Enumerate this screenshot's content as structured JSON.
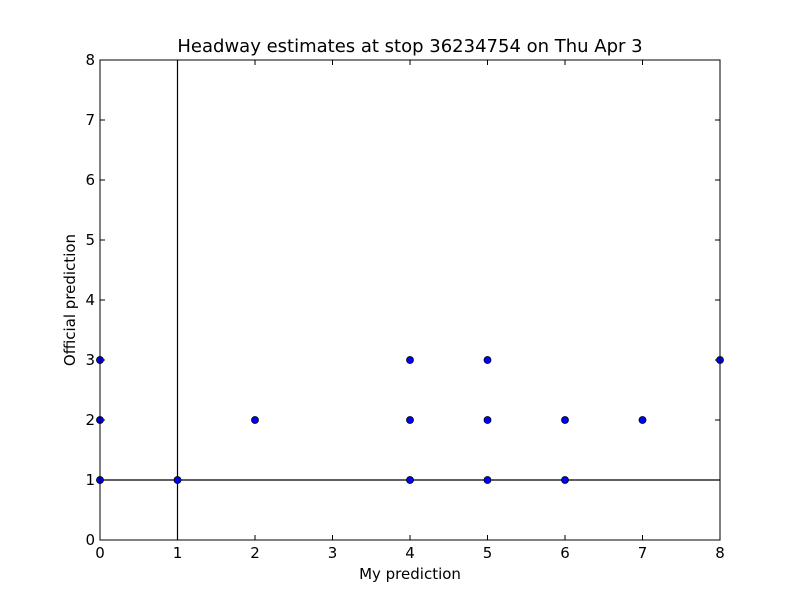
{
  "chart_data": {
    "type": "scatter",
    "title": "Headway estimates at stop 36234754 on Thu Apr 3",
    "xlabel": "My prediction",
    "ylabel": "Official prediction",
    "xlim": [
      0,
      8
    ],
    "ylim": [
      0,
      8
    ],
    "xticks": [
      "0",
      "1",
      "2",
      "3",
      "4",
      "5",
      "6",
      "7",
      "8"
    ],
    "yticks": [
      "0",
      "1",
      "2",
      "3",
      "4",
      "5",
      "6",
      "7",
      "8"
    ],
    "grid": false,
    "reference_lines": {
      "vertical_x": 1,
      "horizontal_y": 1
    },
    "marker_color": "#0000ff",
    "points": [
      {
        "x": 0,
        "y": 1
      },
      {
        "x": 0,
        "y": 2
      },
      {
        "x": 0,
        "y": 3
      },
      {
        "x": 1,
        "y": 1
      },
      {
        "x": 2,
        "y": 2
      },
      {
        "x": 4,
        "y": 1
      },
      {
        "x": 4,
        "y": 2
      },
      {
        "x": 4,
        "y": 3
      },
      {
        "x": 5,
        "y": 1
      },
      {
        "x": 5,
        "y": 2
      },
      {
        "x": 5,
        "y": 3
      },
      {
        "x": 6,
        "y": 1
      },
      {
        "x": 6,
        "y": 2
      },
      {
        "x": 7,
        "y": 2
      },
      {
        "x": 8,
        "y": 3
      }
    ]
  }
}
